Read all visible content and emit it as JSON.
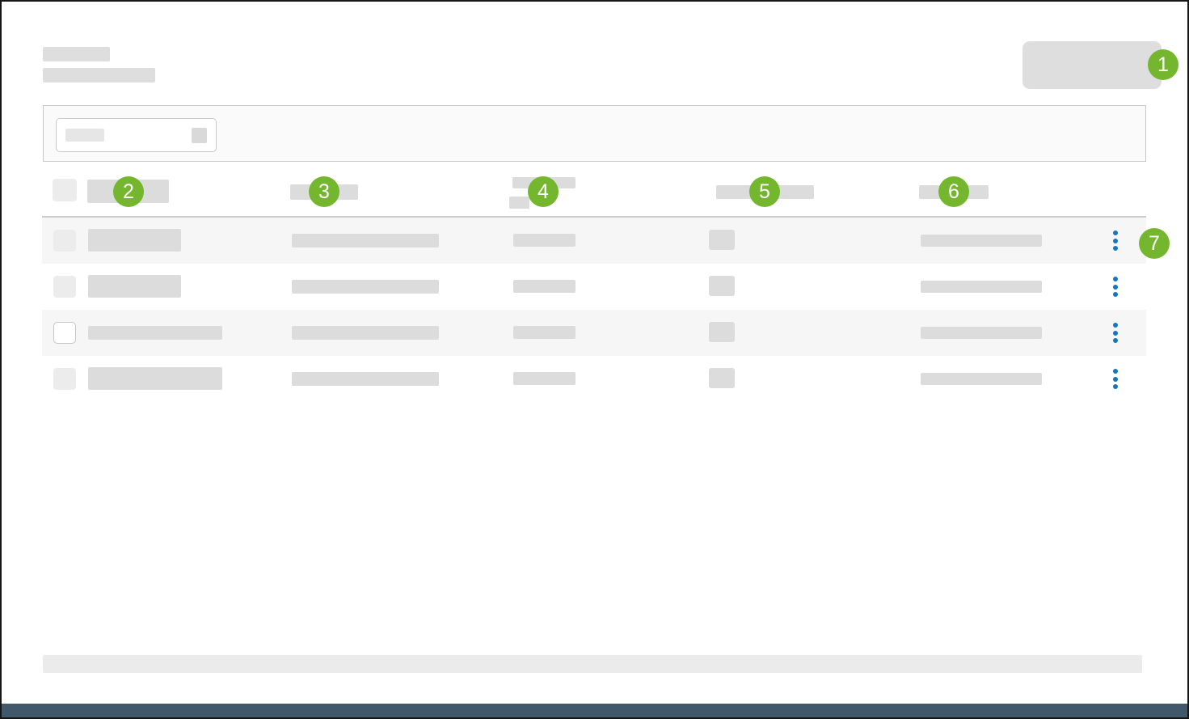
{
  "colors": {
    "badge_green": "#74b72e",
    "kebab_blue": "#1576bf",
    "placeholder": "#dcdcdc",
    "placeholder_light": "#ececec",
    "row_shaded_bg": "#f6f6f6",
    "toolbar_bg": "#fafafa",
    "footer_bar": "#ebebeb",
    "bottom_bar": "#41586a"
  },
  "callouts": [
    "1",
    "2",
    "3",
    "4",
    "5",
    "6",
    "7"
  ],
  "icons": {
    "row_actions": "kebab-vertical-icon",
    "search_box": "square-icon-placeholder"
  },
  "table": {
    "header": {
      "has_select_all_checkbox": true,
      "column_placeholder_count": 5
    },
    "rows": [
      {
        "shaded": true,
        "checkbox": "placeholder",
        "name_bar": "short",
        "name_thin": false
      },
      {
        "shaded": false,
        "checkbox": "placeholder",
        "name_bar": "short",
        "name_thin": false
      },
      {
        "shaded": true,
        "checkbox": "active",
        "name_bar": "long",
        "name_thin": true
      },
      {
        "shaded": false,
        "checkbox": "placeholder",
        "name_bar": "long",
        "name_thin": false
      }
    ]
  }
}
